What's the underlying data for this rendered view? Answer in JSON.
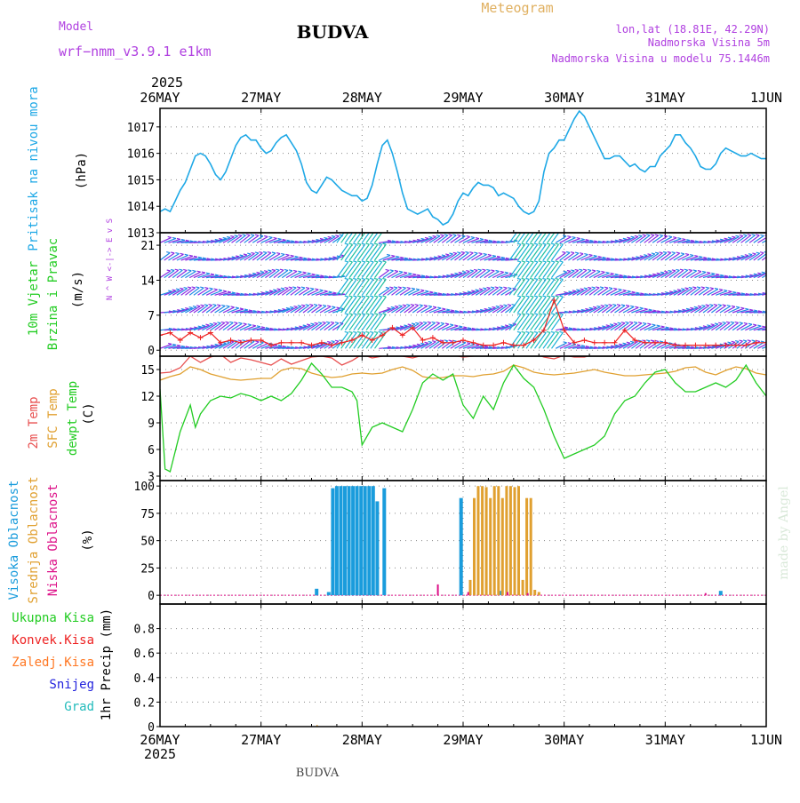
{
  "header": {
    "model_label": "Model",
    "model_name": "wrf−nmm_v3.9.1 e1km",
    "station": "BUDVA",
    "product": "Meteogram",
    "lonlat": "lon,lat (18.81E, 42.29N)",
    "elevation": "Nadmorska Visina 5m",
    "model_elevation": "Nadmorska Visina u modelu 75.1446m",
    "year": "2025",
    "footer_station": "BUDVA",
    "watermark": "made by Angel"
  },
  "colors": {
    "pressure": "#1ea8e6",
    "wind_speed": "#ee2222",
    "temp2m": "#e85050",
    "sfc_temp": "#e0a030",
    "dewpoint": "#22cc22",
    "high_cloud": "#1a9cdc",
    "mid_cloud": "#e0a030",
    "low_cloud": "#dd1188",
    "total_precip": "#22cc22",
    "conv_precip": "#ee2222",
    "frz_precip": "#ff7722",
    "snow": "#2222dd",
    "graupel": "#22bbbb",
    "label_purple": "#b040e0",
    "wind_barbs": [
      "#8a2be2",
      "#1e88e5",
      "#18b0d8",
      "#20c0a0"
    ]
  },
  "chart_data": [
    {
      "type": "line",
      "title": "Pritisak na nivou mora",
      "ylabel": "(hPa)",
      "ylim": [
        1013,
        1017.7
      ],
      "yticks": [
        "1017",
        "1016",
        "1015",
        "1014",
        "1013"
      ],
      "xticks": [
        "26MAY",
        "27MAY",
        "28MAY",
        "29MAY",
        "30MAY",
        "31MAY",
        "1JUN"
      ],
      "grid": true,
      "series": [
        {
          "name": "Pritisak na nivou mora",
          "x": [
            0,
            0.05,
            0.1,
            0.15,
            0.2,
            0.25,
            0.3,
            0.35,
            0.4,
            0.45,
            0.5,
            0.55,
            0.6,
            0.65,
            0.7,
            0.75,
            0.8,
            0.85,
            0.9,
            0.95,
            1.0,
            1.05,
            1.1,
            1.15,
            1.2,
            1.25,
            1.3,
            1.35,
            1.4,
            1.45,
            1.5,
            1.55,
            1.6,
            1.65,
            1.7,
            1.75,
            1.8,
            1.85,
            1.9,
            1.95,
            2.0,
            2.05,
            2.1,
            2.15,
            2.2,
            2.25,
            2.3,
            2.35,
            2.4,
            2.45,
            2.5,
            2.55,
            2.6,
            2.65,
            2.7,
            2.75,
            2.8,
            2.85,
            2.9,
            2.95,
            3.0,
            3.05,
            3.1,
            3.15,
            3.2,
            3.25,
            3.3,
            3.35,
            3.4,
            3.45,
            3.5,
            3.55,
            3.6,
            3.65,
            3.7,
            3.75,
            3.8,
            3.85,
            3.9,
            3.95,
            4.0,
            4.05,
            4.1,
            4.15,
            4.2,
            4.25,
            4.3,
            4.35,
            4.4,
            4.45,
            4.5,
            4.55,
            4.6,
            4.65,
            4.7,
            4.75,
            4.8,
            4.85,
            4.9,
            4.95,
            5.0,
            5.05,
            5.1,
            5.15,
            5.2,
            5.25,
            5.3,
            5.35,
            5.4,
            5.45,
            5.5,
            5.55,
            5.6,
            5.65,
            5.7,
            5.75,
            5.8,
            5.85,
            5.9,
            5.95,
            6.0
          ],
          "values": [
            1013.8,
            1013.9,
            1013.8,
            1014.2,
            1014.6,
            1014.9,
            1015.4,
            1015.9,
            1016.0,
            1015.9,
            1015.6,
            1015.2,
            1015.0,
            1015.3,
            1015.8,
            1016.3,
            1016.6,
            1016.7,
            1016.5,
            1016.5,
            1016.2,
            1016.0,
            1016.1,
            1016.4,
            1016.6,
            1016.7,
            1016.4,
            1016.1,
            1015.6,
            1014.9,
            1014.6,
            1014.5,
            1014.8,
            1015.1,
            1015.0,
            1014.8,
            1014.6,
            1014.5,
            1014.4,
            1014.4,
            1014.2,
            1014.3,
            1014.8,
            1015.6,
            1016.3,
            1016.5,
            1016.0,
            1015.3,
            1014.5,
            1013.9,
            1013.8,
            1013.7,
            1013.8,
            1013.9,
            1013.6,
            1013.5,
            1013.3,
            1013.4,
            1013.7,
            1014.2,
            1014.5,
            1014.4,
            1014.7,
            1014.9,
            1014.8,
            1014.8,
            1014.7,
            1014.4,
            1014.5,
            1014.4,
            1014.3,
            1014.0,
            1013.8,
            1013.7,
            1013.8,
            1014.2,
            1015.3,
            1016.0,
            1016.2,
            1016.5,
            1016.5,
            1016.9,
            1017.3,
            1017.6,
            1017.4,
            1017.0,
            1016.6,
            1016.2,
            1015.8,
            1015.8,
            1015.9,
            1015.9,
            1015.7,
            1015.5,
            1015.6,
            1015.4,
            1015.3,
            1015.5,
            1015.5,
            1015.9,
            1016.1,
            1016.3,
            1016.7,
            1016.7,
            1016.4,
            1016.2,
            1015.9,
            1015.5,
            1015.4,
            1015.4,
            1015.6,
            1016.0,
            1016.2,
            1016.1,
            1016.0,
            1015.9,
            1015.9,
            1016.0,
            1015.9,
            1015.8,
            1015.8
          ]
        }
      ]
    },
    {
      "type": "line",
      "title": "10m Vjetar Brzina i Pravac",
      "ylabel": "(m/s)",
      "ylim": [
        -1.2,
        23.5
      ],
      "yticks": [
        "21",
        "14",
        "7",
        "0"
      ],
      "barb_rows": [
        0.35,
        4,
        7.5,
        11,
        14.5,
        18,
        21.5
      ],
      "compass_label": "N ^ W <-|-> E v S",
      "compass": {
        "n": "N",
        "s": "S",
        "w": "W",
        "e": "E"
      },
      "grid": true,
      "series": [
        {
          "name": "10m Vjetar",
          "x": [
            0,
            0.1,
            0.2,
            0.3,
            0.4,
            0.5,
            0.6,
            0.7,
            0.8,
            0.9,
            1.0,
            1.1,
            1.2,
            1.3,
            1.4,
            1.5,
            1.6,
            1.7,
            1.8,
            1.9,
            2.0,
            2.1,
            2.2,
            2.3,
            2.4,
            2.5,
            2.6,
            2.7,
            2.8,
            2.9,
            3.0,
            3.1,
            3.2,
            3.3,
            3.4,
            3.5,
            3.6,
            3.7,
            3.8,
            3.9,
            4.0,
            4.1,
            4.2,
            4.3,
            4.4,
            4.5,
            4.6,
            4.7,
            4.8,
            4.9,
            5.0,
            5.1,
            5.2,
            5.3,
            5.4,
            5.5,
            5.6,
            5.7,
            5.8,
            5.9,
            6.0
          ],
          "values": [
            3,
            3.5,
            2,
            3.5,
            2.5,
            3.5,
            1.5,
            2,
            1.5,
            2,
            2,
            1,
            1.5,
            1.5,
            1.5,
            1,
            1.5,
            1,
            1.5,
            2,
            3,
            2,
            3,
            4.5,
            3,
            4.5,
            2,
            2.5,
            1.5,
            1.5,
            2,
            1.5,
            1,
            1,
            1.5,
            1,
            1,
            2,
            4,
            10,
            4,
            1.5,
            2,
            1.5,
            1.5,
            1.5,
            4,
            2,
            1.5,
            1.5,
            1.5,
            1,
            1,
            1,
            1,
            1,
            1,
            1,
            1,
            1.5,
            1.5
          ]
        }
      ]
    },
    {
      "type": "line",
      "title": "2m Temp / SFC Temp / dewpt Temp",
      "ylabel": "(C)",
      "ylim": [
        2.5,
        16.5
      ],
      "yticks": [
        "15",
        "12",
        "9",
        "6",
        "3"
      ],
      "grid": true,
      "series": [
        {
          "name": "2m Temp",
          "x": [
            0,
            0.1,
            0.2,
            0.3,
            0.4,
            0.5,
            0.6,
            0.7,
            0.8,
            0.9,
            1.0,
            1.1,
            1.2,
            1.3,
            1.4,
            1.5,
            1.6,
            1.7,
            1.8,
            1.9,
            2.0,
            2.1,
            2.2,
            2.3,
            2.4,
            2.5,
            2.6,
            2.7,
            2.8,
            2.9,
            3.0,
            3.1,
            3.2,
            3.3,
            3.4,
            3.5,
            3.6,
            3.7,
            3.8,
            3.9,
            4.0,
            4.1,
            4.2,
            4.3,
            4.4,
            4.5,
            4.6,
            4.7,
            4.8,
            4.9,
            5.0,
            5.1,
            5.2,
            5.3,
            5.4,
            5.5,
            5.6,
            5.7,
            5.8,
            5.9,
            6.0
          ],
          "values": [
            14.6,
            14.7,
            15.2,
            16.5,
            15.8,
            16.4,
            16.7,
            15.8,
            16.3,
            16.1,
            15.8,
            15.5,
            16.2,
            15.6,
            16.0,
            16.4,
            16.5,
            16.3,
            15.5,
            16.0,
            16.7,
            16.3,
            16.5,
            16.6,
            16.5,
            16.3,
            16.6,
            16.5,
            16.6,
            16.6,
            16.4,
            16.5,
            16.6,
            16.8,
            16.8,
            16.8,
            16.7,
            16.8,
            16.4,
            16.2,
            16.6,
            16.4,
            16.4,
            16.7,
            16.7,
            16.6,
            16.6,
            16.6,
            16.5,
            16.6,
            16.8,
            16.5,
            16.5,
            16.7,
            16.6,
            16.8,
            16.8,
            16.7,
            16.8,
            16.8,
            16.6
          ]
        },
        {
          "name": "SFC Temp",
          "x": [
            0,
            0.1,
            0.2,
            0.3,
            0.4,
            0.5,
            0.6,
            0.7,
            0.8,
            0.9,
            1.0,
            1.1,
            1.2,
            1.3,
            1.4,
            1.5,
            1.6,
            1.7,
            1.8,
            1.9,
            2.0,
            2.1,
            2.2,
            2.3,
            2.4,
            2.5,
            2.6,
            2.7,
            2.8,
            2.9,
            3.0,
            3.1,
            3.2,
            3.3,
            3.4,
            3.5,
            3.6,
            3.7,
            3.8,
            3.9,
            4.0,
            4.1,
            4.2,
            4.3,
            4.4,
            4.5,
            4.6,
            4.7,
            4.8,
            4.9,
            5.0,
            5.1,
            5.2,
            5.3,
            5.4,
            5.5,
            5.6,
            5.7,
            5.8,
            5.9,
            6.0
          ],
          "values": [
            13.8,
            14.2,
            14.5,
            15.3,
            15.0,
            14.5,
            14.2,
            13.9,
            13.8,
            13.9,
            14.0,
            14.0,
            14.9,
            15.2,
            15.1,
            14.6,
            14.3,
            14.1,
            14.2,
            14.5,
            14.6,
            14.5,
            14.6,
            15.0,
            15.3,
            14.9,
            14.2,
            14.0,
            14.1,
            14.3,
            14.3,
            14.2,
            14.4,
            14.5,
            14.8,
            15.5,
            15.2,
            14.7,
            14.5,
            14.4,
            14.5,
            14.6,
            14.8,
            15.0,
            14.7,
            14.5,
            14.3,
            14.3,
            14.4,
            14.5,
            14.6,
            14.8,
            15.2,
            15.3,
            14.7,
            14.4,
            14.9,
            15.3,
            15.1,
            14.6,
            14.4
          ]
        },
        {
          "name": "dewpt Temp",
          "x": [
            0,
            0.05,
            0.1,
            0.2,
            0.3,
            0.35,
            0.4,
            0.5,
            0.6,
            0.7,
            0.8,
            0.9,
            1.0,
            1.1,
            1.2,
            1.3,
            1.4,
            1.5,
            1.6,
            1.7,
            1.8,
            1.9,
            1.95,
            2.0,
            2.1,
            2.2,
            2.3,
            2.4,
            2.5,
            2.6,
            2.7,
            2.8,
            2.9,
            3.0,
            3.1,
            3.2,
            3.3,
            3.4,
            3.5,
            3.6,
            3.7,
            3.8,
            3.9,
            4.0,
            4.1,
            4.2,
            4.3,
            4.4,
            4.5,
            4.6,
            4.7,
            4.8,
            4.9,
            5.0,
            5.1,
            5.2,
            5.3,
            5.4,
            5.5,
            5.6,
            5.7,
            5.8,
            5.9,
            6.0
          ],
          "values": [
            12.8,
            3.8,
            3.5,
            8.0,
            11.0,
            8.5,
            10.0,
            11.5,
            12.0,
            11.8,
            12.3,
            12.0,
            11.5,
            12.0,
            11.5,
            12.3,
            13.8,
            15.7,
            14.5,
            13.0,
            13.0,
            12.5,
            11.5,
            6.5,
            8.5,
            9.0,
            8.5,
            8.0,
            10.5,
            13.5,
            14.5,
            13.8,
            14.5,
            11.0,
            9.5,
            12.0,
            10.5,
            13.5,
            15.5,
            14.0,
            13.0,
            10.5,
            7.5,
            5.0,
            5.5,
            6.0,
            6.5,
            7.5,
            10.0,
            11.5,
            12.0,
            13.5,
            14.7,
            15.0,
            13.5,
            12.5,
            12.5,
            13.0,
            13.5,
            13.0,
            13.8,
            15.5,
            13.5,
            12.0
          ]
        }
      ]
    },
    {
      "type": "bar",
      "title": "Visoka / Srednja / Niska Oblacnost",
      "ylabel": "(%)",
      "ylim": [
        -8,
        105
      ],
      "yticks": [
        "100",
        "75",
        "50",
        "25",
        "0"
      ],
      "grid": true,
      "series": [
        {
          "name": "Visoka Oblacnost",
          "x": [
            1.55,
            1.67,
            1.71,
            1.75,
            1.79,
            1.83,
            1.87,
            1.91,
            1.95,
            1.99,
            2.03,
            2.07,
            2.11,
            2.15,
            2.22,
            2.98,
            3.38,
            5.55
          ],
          "values": [
            6,
            3,
            98,
            100,
            100,
            100,
            100,
            100,
            100,
            100,
            100,
            100,
            100,
            86,
            98,
            89,
            4,
            4
          ]
        },
        {
          "name": "Srednja Oblacnost",
          "x": [
            3.07,
            3.11,
            3.15,
            3.19,
            3.23,
            3.27,
            3.31,
            3.35,
            3.39,
            3.43,
            3.47,
            3.51,
            3.55,
            3.59,
            3.63,
            3.67,
            3.71,
            3.75
          ],
          "values": [
            14,
            89,
            100,
            100,
            99,
            89,
            100,
            100,
            89,
            100,
            100,
            99,
            100,
            14,
            89,
            89,
            5,
            3
          ]
        },
        {
          "name": "Niska Oblacnost",
          "x": [
            2.75,
            3.05,
            3.44,
            3.64,
            5.4
          ],
          "values": [
            10,
            3,
            3,
            2,
            2
          ]
        }
      ]
    },
    {
      "type": "line",
      "title": "1hr Precip",
      "ylabel": "1hr Precip (mm)",
      "ylim": [
        0,
        1.0
      ],
      "yticks": [
        "0.8",
        "0.6",
        "0.4",
        "0.2",
        "0"
      ],
      "grid": true,
      "legend": [
        "Ukupna Kisa",
        "Konvek.Kisa",
        "Zaledj.Kisa",
        "Snijeg",
        "Grad"
      ],
      "series": [
        {
          "name": "Ukupna Kisa",
          "x": [
            0,
            6
          ],
          "values": [
            0,
            0
          ]
        }
      ]
    }
  ],
  "axis": {
    "top_year": "2025",
    "bottom_year": "2025",
    "dates": [
      "26MAY",
      "27MAY",
      "28MAY",
      "29MAY",
      "30MAY",
      "31MAY",
      "1JUN"
    ]
  },
  "labels": {
    "pressure_title": "Pritisak na nivou mora",
    "pressure_unit": "(hPa)",
    "wind_line1": "10m Vjetar",
    "wind_line2": "Brzina i Pravac",
    "wind_unit": "(m/s)",
    "t2m": "2m Temp",
    "tsfc": "SFC Temp",
    "tdew": "dewpt Temp",
    "temp_unit": "(C)",
    "cloud_high": "Visoka Oblacnost",
    "cloud_mid": "Srednja Oblacnost",
    "cloud_low": "Niska Oblacnost",
    "cloud_unit": "(%)",
    "precip_total": "Ukupna Kisa",
    "precip_conv": "Konvek.Kisa",
    "precip_frz": "Zaledj.Kisa",
    "precip_snow": "Snijeg",
    "precip_graupel": "Grad",
    "precip_unit": "1hr Precip (mm)"
  }
}
